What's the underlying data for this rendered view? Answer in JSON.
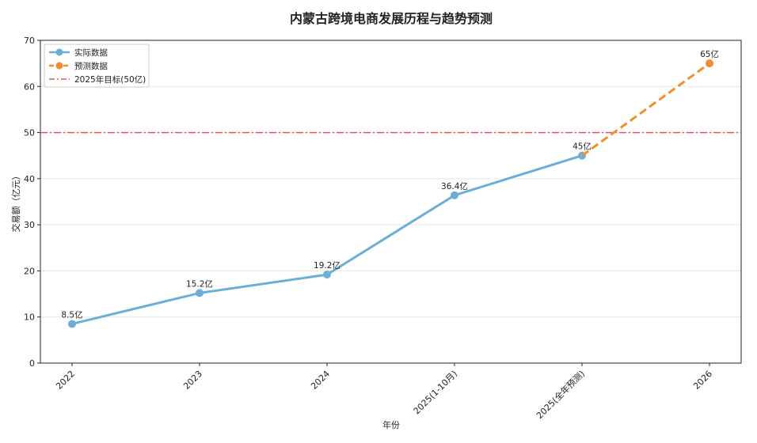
{
  "chart_data": {
    "type": "line",
    "title": "内蒙古跨境电商发展历程与趋势预测",
    "xlabel": "年份",
    "ylabel": "交易额（亿元）",
    "ylim": [
      0,
      70
    ],
    "yticks": [
      0,
      10,
      20,
      30,
      40,
      50,
      60,
      70
    ],
    "categories": [
      "2022",
      "2023",
      "2024",
      "2025(1-10月)",
      "2025(全年预测)",
      "2026"
    ],
    "grid": "horizontal",
    "legend_position": "top-left",
    "series": [
      {
        "name": "实际数据",
        "style": "solid",
        "color": "#6baed6",
        "values": [
          8.5,
          15.2,
          19.2,
          36.4,
          45,
          null
        ],
        "labels": [
          "8.5亿",
          "15.2亿",
          "19.2亿",
          "36.4亿",
          "45亿",
          ""
        ]
      },
      {
        "name": "预测数据",
        "style": "dashed",
        "color": "#f28e2b",
        "values": [
          null,
          null,
          null,
          null,
          45,
          65
        ],
        "labels": [
          "",
          "",
          "",
          "",
          "",
          "65亿"
        ]
      }
    ],
    "reference_lines": [
      {
        "name": "2025年目标(50亿)",
        "value": 50,
        "style": "dashdot",
        "color": "#e15759"
      }
    ]
  }
}
